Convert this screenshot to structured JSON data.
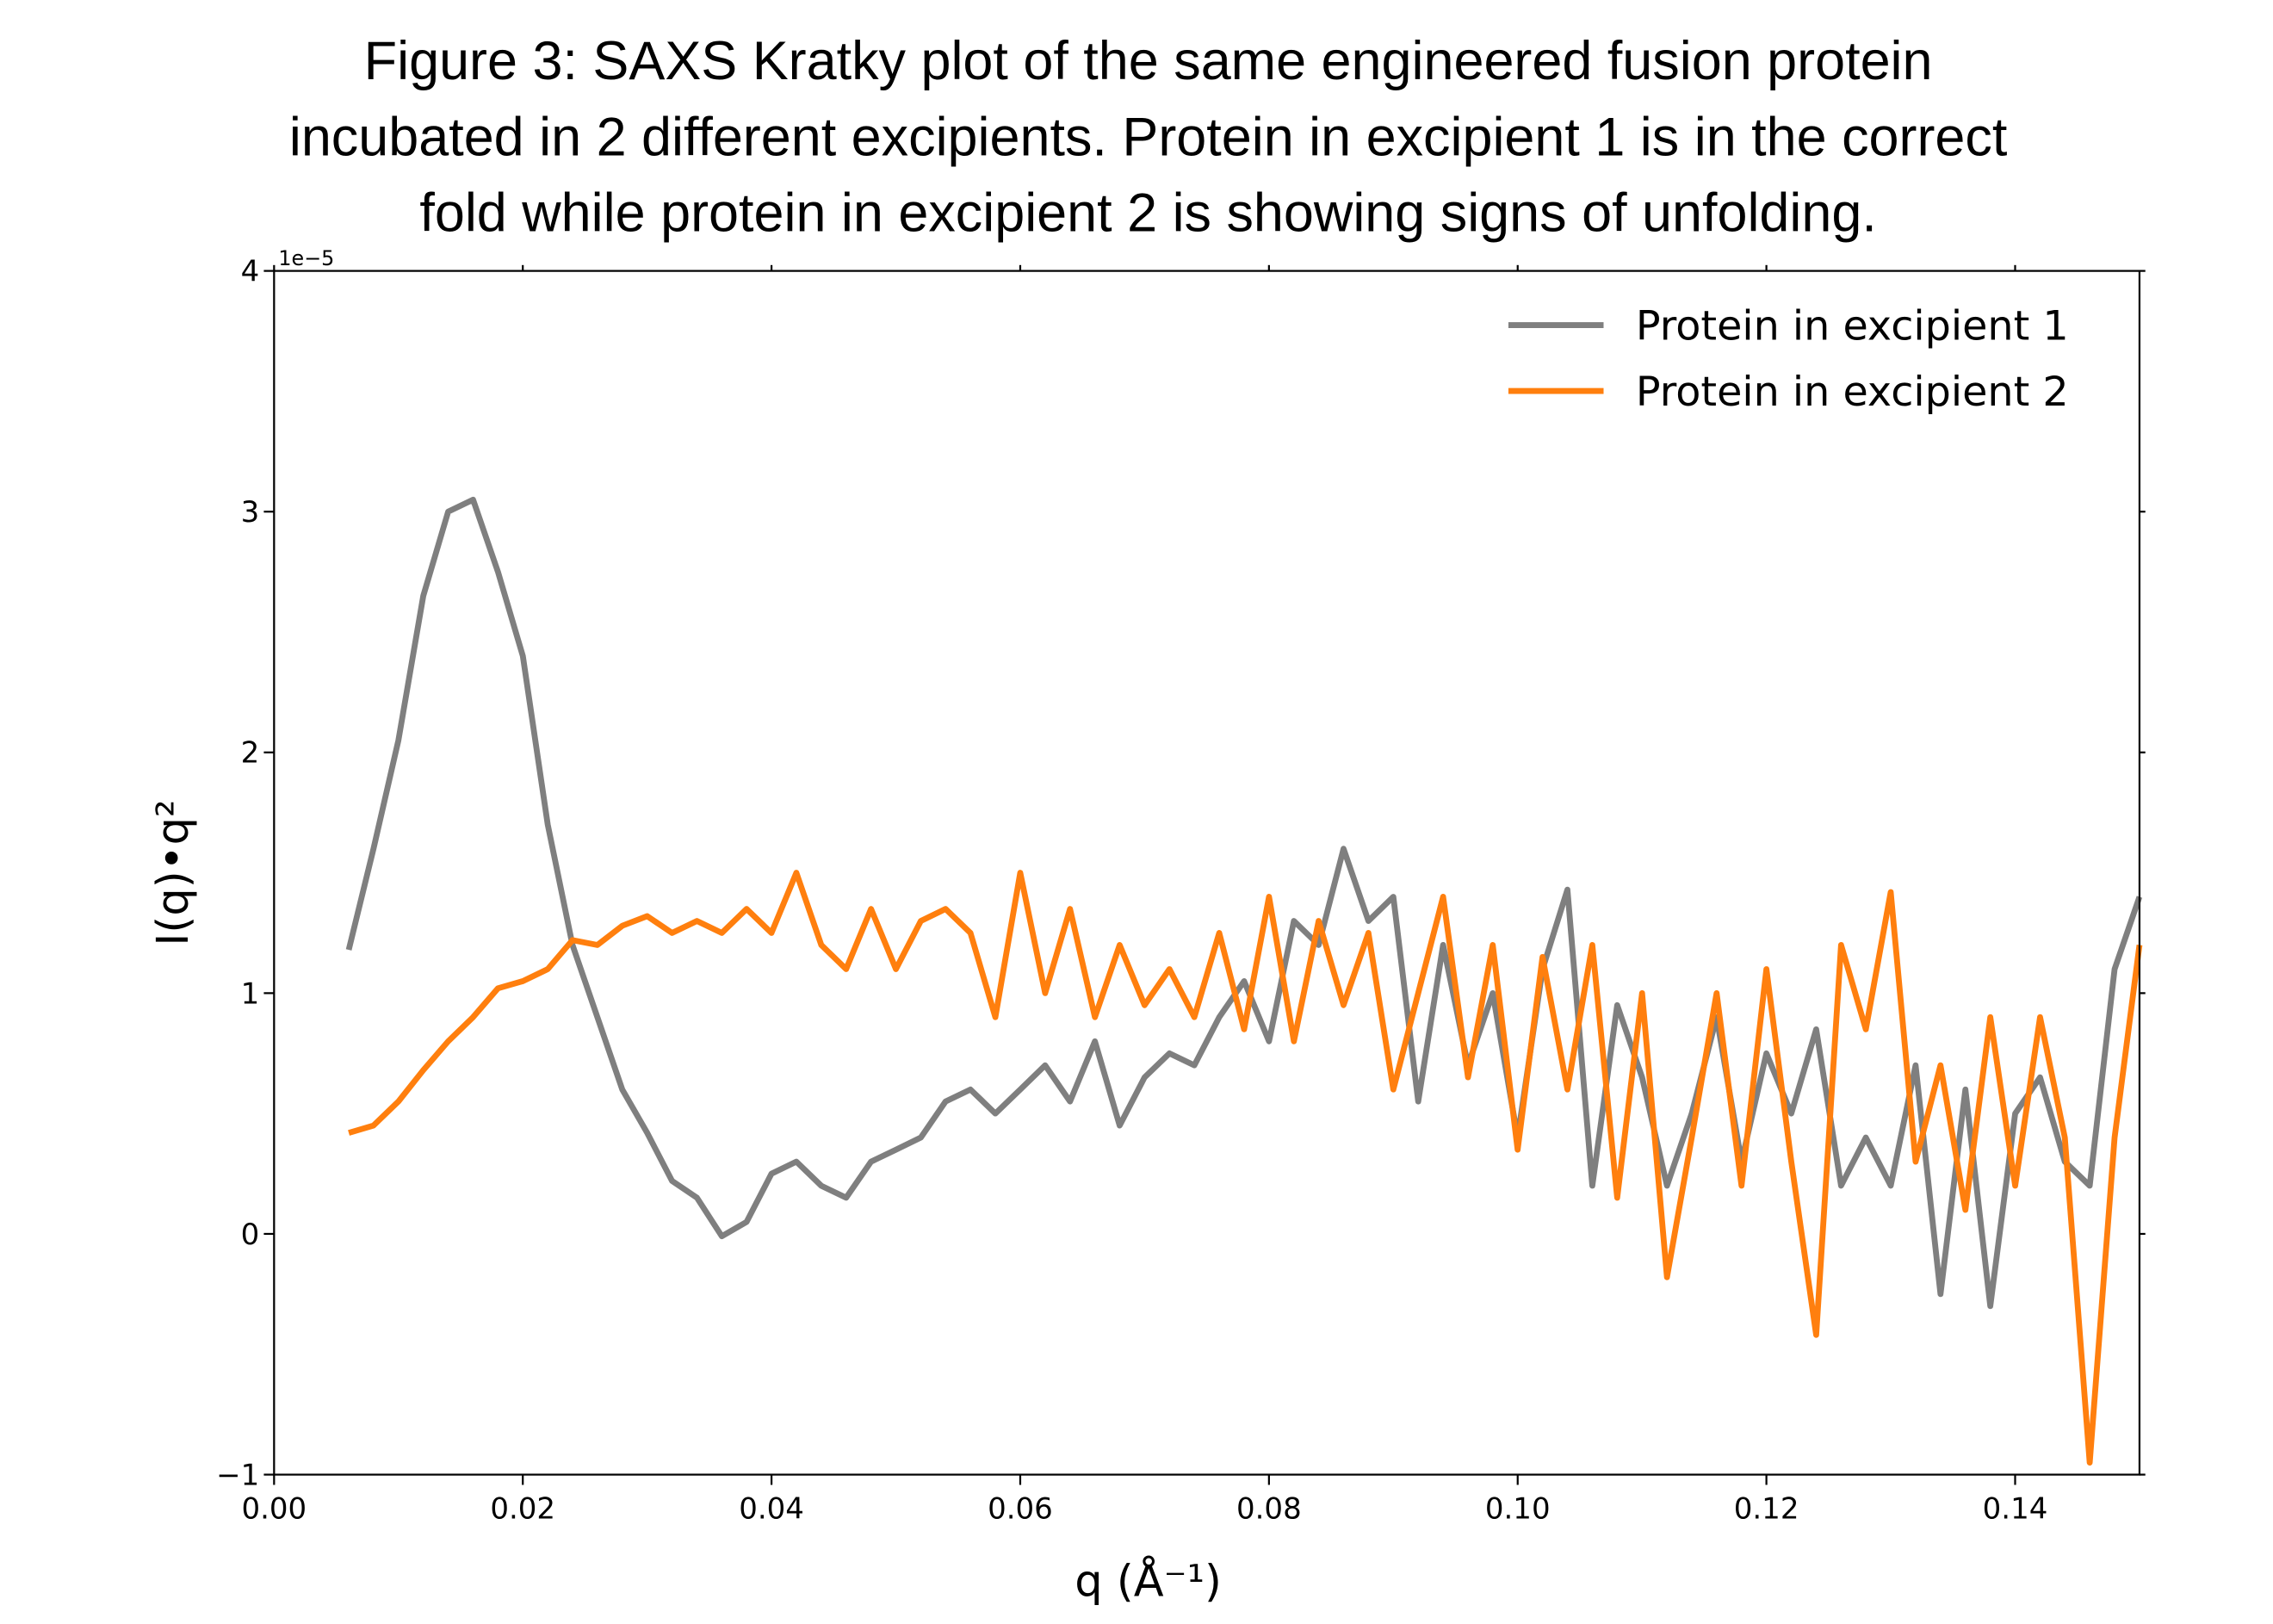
{
  "chart_data": {
    "type": "line",
    "title": [
      "Figure 3: SAXS Kratky plot of the same engineered fusion protein",
      "incubated in 2 different excipients. Protein in excipient 1 is in the correct",
      "fold while protein in excipient 2 is showing signs of unfolding."
    ],
    "xlabel": "q (Å⁻¹)",
    "ylabel": "I(q)•q²",
    "y_offset_text": "1e−5",
    "x": [
      0.006,
      0.008,
      0.01,
      0.012,
      0.014,
      0.016,
      0.018,
      0.02,
      0.022,
      0.024,
      0.026,
      0.028,
      0.03,
      0.032,
      0.034,
      0.036,
      0.038,
      0.04,
      0.042,
      0.044,
      0.046,
      0.048,
      0.05,
      0.052,
      0.054,
      0.056,
      0.058,
      0.06,
      0.062,
      0.064,
      0.066,
      0.068,
      0.07,
      0.072,
      0.074,
      0.076,
      0.078,
      0.08,
      0.082,
      0.084,
      0.086,
      0.088,
      0.09,
      0.092,
      0.094,
      0.096,
      0.098,
      0.1,
      0.102,
      0.104,
      0.106,
      0.108,
      0.11,
      0.112,
      0.114,
      0.116,
      0.118,
      0.12,
      0.122,
      0.124,
      0.126,
      0.128,
      0.13,
      0.132,
      0.134,
      0.136,
      0.138,
      0.14,
      0.142,
      0.144,
      0.146,
      0.148,
      0.15
    ],
    "series": [
      {
        "name": "Protein in excipient 1",
        "color": "#7f7f7f",
        "values": [
          1.18,
          1.6,
          2.05,
          2.65,
          3.0,
          3.05,
          2.75,
          2.4,
          1.7,
          1.2,
          0.9,
          0.6,
          0.42,
          0.22,
          0.15,
          -0.01,
          0.05,
          0.25,
          0.3,
          0.2,
          0.15,
          0.3,
          0.35,
          0.4,
          0.55,
          0.6,
          0.5,
          0.6,
          0.7,
          0.55,
          0.8,
          0.45,
          0.65,
          0.75,
          0.7,
          0.9,
          1.05,
          0.8,
          1.3,
          1.2,
          1.6,
          1.3,
          1.4,
          0.55,
          1.2,
          0.7,
          1.0,
          0.4,
          1.1,
          1.43,
          0.2,
          0.95,
          0.65,
          0.2,
          0.5,
          0.9,
          0.3,
          0.75,
          0.5,
          0.85,
          0.2,
          0.4,
          0.2,
          0.7,
          -0.25,
          0.6,
          -0.3,
          0.5,
          0.65,
          0.3,
          0.2,
          1.1,
          1.4
        ]
      },
      {
        "name": "Protein in excipient 2",
        "color": "#ff7f0e",
        "values": [
          0.42,
          0.45,
          0.55,
          0.68,
          0.8,
          0.9,
          1.02,
          1.05,
          1.1,
          1.22,
          1.2,
          1.28,
          1.32,
          1.25,
          1.3,
          1.25,
          1.35,
          1.25,
          1.5,
          1.2,
          1.1,
          1.35,
          1.1,
          1.3,
          1.35,
          1.25,
          0.9,
          1.5,
          1.0,
          1.35,
          0.9,
          1.2,
          0.95,
          1.1,
          0.9,
          1.25,
          0.85,
          1.4,
          0.8,
          1.3,
          0.95,
          1.25,
          0.6,
          1.0,
          1.4,
          0.65,
          1.2,
          0.35,
          1.15,
          0.6,
          1.2,
          0.15,
          1.0,
          -0.18,
          0.4,
          1.0,
          0.2,
          1.1,
          0.3,
          -0.42,
          1.2,
          0.85,
          1.42,
          0.3,
          0.7,
          0.1,
          0.9,
          0.2,
          0.9,
          0.4,
          -0.95,
          0.4,
          1.2
        ]
      }
    ],
    "xlim": [
      0,
      0.15
    ],
    "ylim": [
      -1,
      4
    ],
    "xticks": [
      {
        "value": 0,
        "label": "0.00"
      },
      0.02,
      0.04,
      0.06,
      0.08,
      {
        "value": 0.1,
        "label": "0.10"
      },
      0.12,
      0.14
    ],
    "yticks": [
      {
        "value": -1,
        "label": "−1"
      },
      0,
      1,
      2,
      3,
      4
    ],
    "legend": "upper right",
    "grid": false
  }
}
